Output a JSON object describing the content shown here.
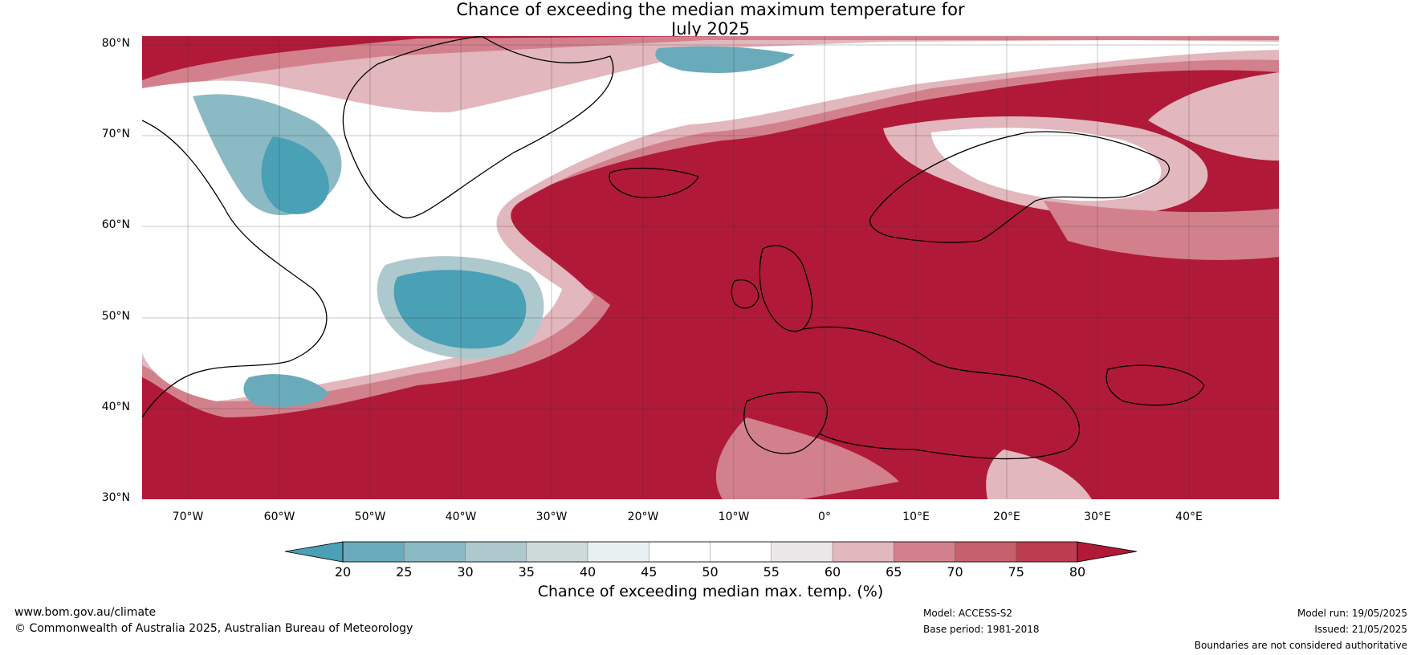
{
  "title": {
    "line1": "Chance of exceeding the median maximum temperature for",
    "line2": "July 2025"
  },
  "map": {
    "lat_labels": [
      "80°N",
      "70°N",
      "60°N",
      "50°N",
      "40°N",
      "30°N"
    ],
    "lon_labels": [
      "70°W",
      "60°W",
      "50°W",
      "40°W",
      "30°W",
      "20°W",
      "10°W",
      "0°",
      "10°E",
      "20°E",
      "30°E",
      "40°E"
    ],
    "extent": {
      "lon_min": -75,
      "lon_max": 50,
      "lat_min": 30,
      "lat_max": 81
    }
  },
  "colorbar": {
    "ticks": [
      "20",
      "25",
      "30",
      "35",
      "40",
      "45",
      "50",
      "55",
      "60",
      "65",
      "70",
      "75",
      "80"
    ],
    "label": "Chance of exceeding median max. temp. (%)",
    "colors": [
      "#4aa0b5",
      "#6aabbb",
      "#8bb9c4",
      "#adc9ce",
      "#ced9da",
      "#e9f0f1",
      "#ffffff",
      "#ffffff",
      "#ebe7e8",
      "#e2b7bd",
      "#d3808d",
      "#c6606d",
      "#bc3d4f",
      "#b01a38"
    ]
  },
  "footer": {
    "url": "www.bom.gov.au/climate",
    "copyright": "© Commonwealth of Australia 2025, Australian Bureau of Meteorology",
    "model": "Model: ACCESS-S2",
    "base_period": "Base period: 1981-2018",
    "model_run": "Model run: 19/05/2025",
    "issued": "Issued: 21/05/2025",
    "disclaimer": "Boundaries are not considered authoritative"
  }
}
